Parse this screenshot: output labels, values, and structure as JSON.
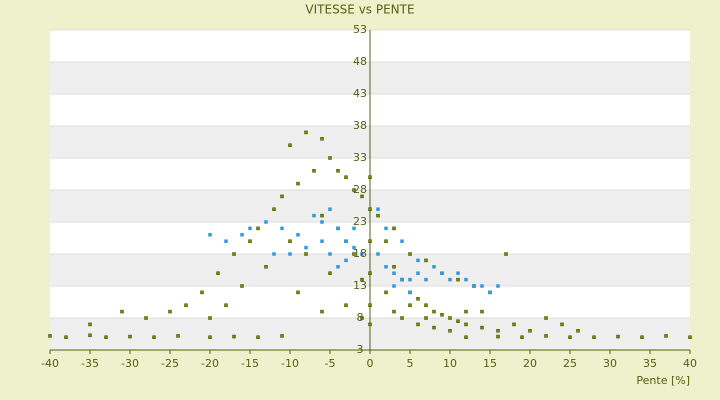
{
  "chart_data": {
    "type": "scatter",
    "title": "VITESSE vs PENTE",
    "x_label": "Pente [%]",
    "xlim": [
      -40,
      40
    ],
    "xticks": [
      -40,
      -35,
      -30,
      -25,
      -20,
      -15,
      -10,
      -5,
      0,
      5,
      10,
      15,
      20,
      25,
      30,
      35,
      40
    ],
    "ylim": [
      3,
      53
    ],
    "yticks": [
      3,
      8,
      13,
      18,
      23,
      28,
      33,
      38,
      43,
      48,
      53
    ],
    "grid": true,
    "series": [
      {
        "color": "#7a8a00",
        "x": [
          -40,
          -38,
          -35,
          -33,
          -30,
          -27,
          -24,
          -20,
          -17,
          -14,
          -11,
          12,
          16,
          19,
          22,
          25,
          28,
          31,
          34,
          37,
          40,
          -10,
          -8,
          -6,
          -5,
          -4,
          -3,
          -2,
          -1,
          -7,
          -9,
          -11,
          -12,
          -14,
          -15,
          -17,
          -19,
          -21,
          -23,
          -25,
          -28,
          -31,
          -35,
          -6,
          -4,
          -3,
          -2,
          -1,
          -5,
          -8,
          -10,
          -13,
          -16,
          -18,
          -20,
          -9,
          -6,
          -3,
          -1,
          0,
          0,
          0,
          0,
          0,
          0,
          1,
          2,
          3,
          4,
          5,
          6,
          7,
          8,
          9,
          10,
          11,
          12,
          14,
          16,
          18,
          20,
          22,
          24,
          26,
          3,
          5,
          7,
          9,
          11,
          13,
          15,
          17,
          4,
          6,
          8,
          10,
          12,
          14,
          2,
          3,
          5,
          7
        ],
        "values": [
          5.2,
          5,
          5.3,
          5,
          5.1,
          5,
          5.2,
          5,
          5.1,
          5,
          5.2,
          5,
          5.1,
          5,
          5.2,
          5,
          5,
          5.1,
          5,
          5.2,
          5,
          35,
          37,
          36,
          33,
          31,
          30,
          28,
          27,
          31,
          29,
          27,
          25,
          22,
          20,
          18,
          15,
          12,
          10,
          9,
          8,
          9,
          7,
          24,
          22,
          20,
          18,
          14,
          15,
          18,
          20,
          16,
          13,
          10,
          8,
          12,
          9,
          10,
          8,
          30,
          25,
          20,
          15,
          10,
          7,
          24,
          20,
          16,
          14,
          12,
          11,
          10,
          9,
          8.5,
          8,
          7.5,
          7,
          6.5,
          6,
          7,
          6,
          8,
          7,
          6,
          22,
          18,
          17,
          15,
          14,
          13,
          12,
          18,
          8,
          7,
          6.5,
          6,
          9,
          9,
          12,
          9,
          10,
          8
        ]
      },
      {
        "color": "#3399dd",
        "x": [
          -20,
          -18,
          -15,
          -13,
          -11,
          -9,
          -7,
          -6,
          -5,
          -4,
          -3,
          -2,
          -1,
          -5,
          -4,
          -3,
          -2,
          -6,
          -8,
          -10,
          -12,
          -16,
          1,
          2,
          3,
          4,
          5,
          6,
          7,
          8,
          9,
          10,
          11,
          12,
          13,
          14,
          15,
          16,
          3,
          5,
          2,
          1,
          4,
          6
        ],
        "values": [
          21,
          20,
          22,
          23,
          22,
          21,
          24,
          23,
          25,
          22,
          20,
          19,
          18,
          18,
          16,
          17,
          22,
          20,
          19,
          18,
          18,
          21,
          18,
          16,
          15,
          14,
          14,
          15,
          14,
          16,
          15,
          14,
          15,
          14,
          13,
          13,
          12,
          13,
          13,
          12,
          22,
          25,
          20,
          17
        ]
      }
    ]
  }
}
